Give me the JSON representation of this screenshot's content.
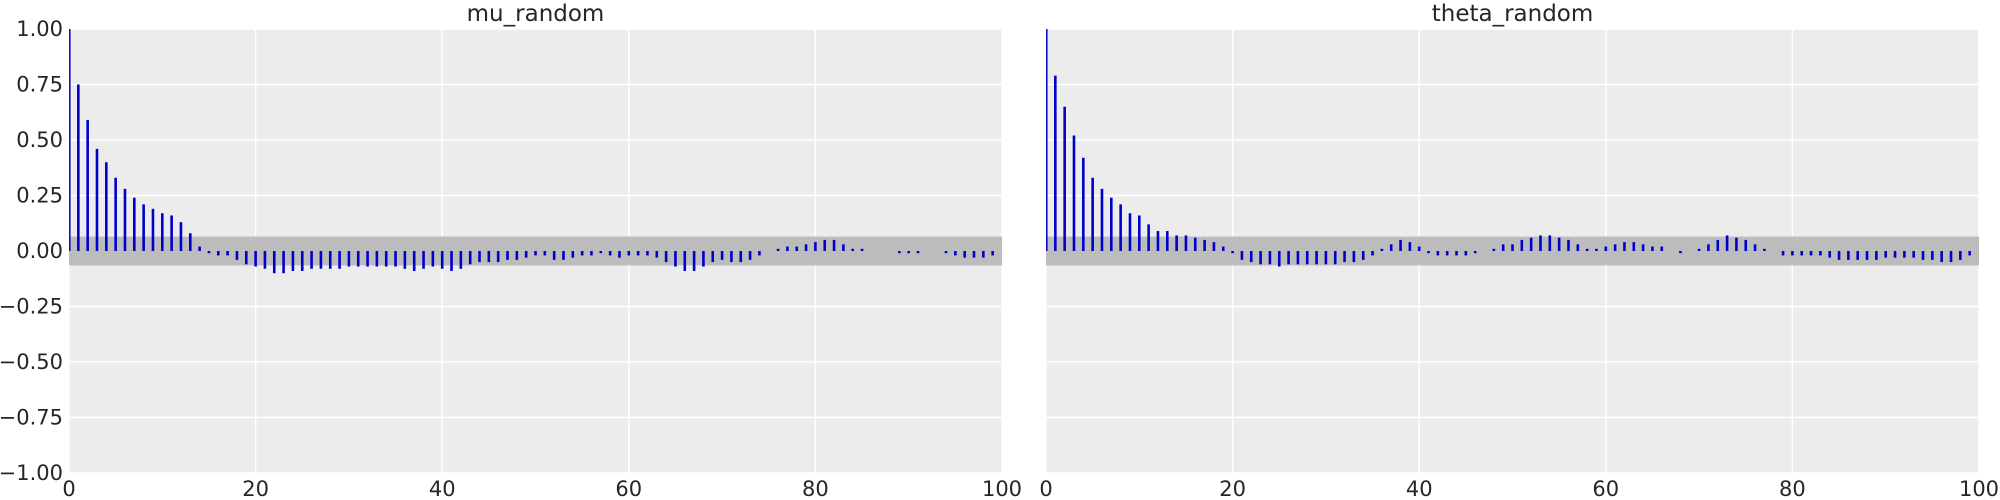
{
  "chart_data": [
    {
      "type": "bar",
      "subtype": "autocorrelation",
      "title": "mu_random",
      "xlabel": "",
      "ylabel": "",
      "xlim": [
        0,
        100
      ],
      "ylim": [
        -1.0,
        1.0
      ],
      "grid": true,
      "xticks": [
        "0",
        "20",
        "40",
        "60",
        "80",
        "100"
      ],
      "yticks": [
        "−1.00",
        "−0.75",
        "−0.50",
        "−0.25",
        "0.00",
        "0.25",
        "0.50",
        "0.75",
        "1.00"
      ],
      "confidence_band": [
        -0.065,
        0.065
      ],
      "color": "#0000cc",
      "band_color": "#bcbcbc",
      "lags": [
        0,
        1,
        2,
        3,
        4,
        5,
        6,
        7,
        8,
        9,
        10,
        11,
        12,
        13,
        14,
        15,
        16,
        17,
        18,
        19,
        20,
        21,
        22,
        23,
        24,
        25,
        26,
        27,
        28,
        29,
        30,
        31,
        32,
        33,
        34,
        35,
        36,
        37,
        38,
        39,
        40,
        41,
        42,
        43,
        44,
        45,
        46,
        47,
        48,
        49,
        50,
        51,
        52,
        53,
        54,
        55,
        56,
        57,
        58,
        59,
        60,
        61,
        62,
        63,
        64,
        65,
        66,
        67,
        68,
        69,
        70,
        71,
        72,
        73,
        74,
        75,
        76,
        77,
        78,
        79,
        80,
        81,
        82,
        83,
        84,
        85,
        86,
        87,
        88,
        89,
        90,
        91,
        92,
        93,
        94,
        95,
        96,
        97,
        98,
        99
      ],
      "values": [
        1.0,
        0.75,
        0.59,
        0.46,
        0.4,
        0.33,
        0.28,
        0.24,
        0.21,
        0.19,
        0.17,
        0.16,
        0.13,
        0.08,
        0.02,
        -0.01,
        -0.02,
        -0.02,
        -0.04,
        -0.06,
        -0.07,
        -0.08,
        -0.1,
        -0.1,
        -0.09,
        -0.09,
        -0.08,
        -0.08,
        -0.08,
        -0.08,
        -0.07,
        -0.07,
        -0.07,
        -0.07,
        -0.07,
        -0.07,
        -0.08,
        -0.09,
        -0.08,
        -0.07,
        -0.08,
        -0.09,
        -0.08,
        -0.06,
        -0.05,
        -0.05,
        -0.05,
        -0.04,
        -0.04,
        -0.03,
        -0.02,
        -0.02,
        -0.04,
        -0.04,
        -0.03,
        -0.02,
        -0.02,
        -0.01,
        -0.02,
        -0.03,
        -0.02,
        -0.02,
        -0.02,
        -0.03,
        -0.05,
        -0.07,
        -0.09,
        -0.09,
        -0.07,
        -0.05,
        -0.04,
        -0.05,
        -0.05,
        -0.04,
        -0.02,
        0.0,
        0.01,
        0.02,
        0.02,
        0.03,
        0.04,
        0.05,
        0.05,
        0.03,
        0.01,
        0.01,
        0.0,
        0.0,
        0.0,
        -0.01,
        -0.01,
        -0.01,
        0.0,
        0.0,
        -0.01,
        -0.02,
        -0.03,
        -0.03,
        -0.03,
        -0.02
      ]
    },
    {
      "type": "bar",
      "subtype": "autocorrelation",
      "title": "theta_random",
      "xlabel": "",
      "ylabel": "",
      "xlim": [
        0,
        100
      ],
      "ylim": [
        -1.0,
        1.0
      ],
      "grid": true,
      "xticks": [
        "0",
        "20",
        "40",
        "60",
        "80",
        "100"
      ],
      "confidence_band": [
        -0.065,
        0.065
      ],
      "color": "#0000cc",
      "band_color": "#bcbcbc",
      "lags": [
        0,
        1,
        2,
        3,
        4,
        5,
        6,
        7,
        8,
        9,
        10,
        11,
        12,
        13,
        14,
        15,
        16,
        17,
        18,
        19,
        20,
        21,
        22,
        23,
        24,
        25,
        26,
        27,
        28,
        29,
        30,
        31,
        32,
        33,
        34,
        35,
        36,
        37,
        38,
        39,
        40,
        41,
        42,
        43,
        44,
        45,
        46,
        47,
        48,
        49,
        50,
        51,
        52,
        53,
        54,
        55,
        56,
        57,
        58,
        59,
        60,
        61,
        62,
        63,
        64,
        65,
        66,
        67,
        68,
        69,
        70,
        71,
        72,
        73,
        74,
        75,
        76,
        77,
        78,
        79,
        80,
        81,
        82,
        83,
        84,
        85,
        86,
        87,
        88,
        89,
        90,
        91,
        92,
        93,
        94,
        95,
        96,
        97,
        98,
        99
      ],
      "values": [
        1.0,
        0.79,
        0.65,
        0.52,
        0.42,
        0.33,
        0.28,
        0.24,
        0.21,
        0.17,
        0.16,
        0.12,
        0.09,
        0.09,
        0.07,
        0.07,
        0.06,
        0.05,
        0.04,
        0.02,
        -0.01,
        -0.04,
        -0.05,
        -0.06,
        -0.06,
        -0.07,
        -0.06,
        -0.06,
        -0.06,
        -0.06,
        -0.06,
        -0.06,
        -0.05,
        -0.05,
        -0.04,
        -0.02,
        0.01,
        0.03,
        0.05,
        0.04,
        0.02,
        -0.01,
        -0.02,
        -0.02,
        -0.02,
        -0.02,
        -0.01,
        0.0,
        0.01,
        0.03,
        0.03,
        0.05,
        0.06,
        0.07,
        0.07,
        0.06,
        0.05,
        0.03,
        0.01,
        0.01,
        0.02,
        0.03,
        0.04,
        0.04,
        0.03,
        0.02,
        0.02,
        0.0,
        -0.01,
        0.0,
        0.01,
        0.03,
        0.05,
        0.07,
        0.06,
        0.05,
        0.03,
        0.01,
        0.0,
        -0.02,
        -0.02,
        -0.02,
        -0.02,
        -0.02,
        -0.03,
        -0.04,
        -0.04,
        -0.04,
        -0.04,
        -0.04,
        -0.03,
        -0.03,
        -0.03,
        -0.03,
        -0.04,
        -0.04,
        -0.05,
        -0.05,
        -0.04,
        -0.02
      ]
    }
  ]
}
